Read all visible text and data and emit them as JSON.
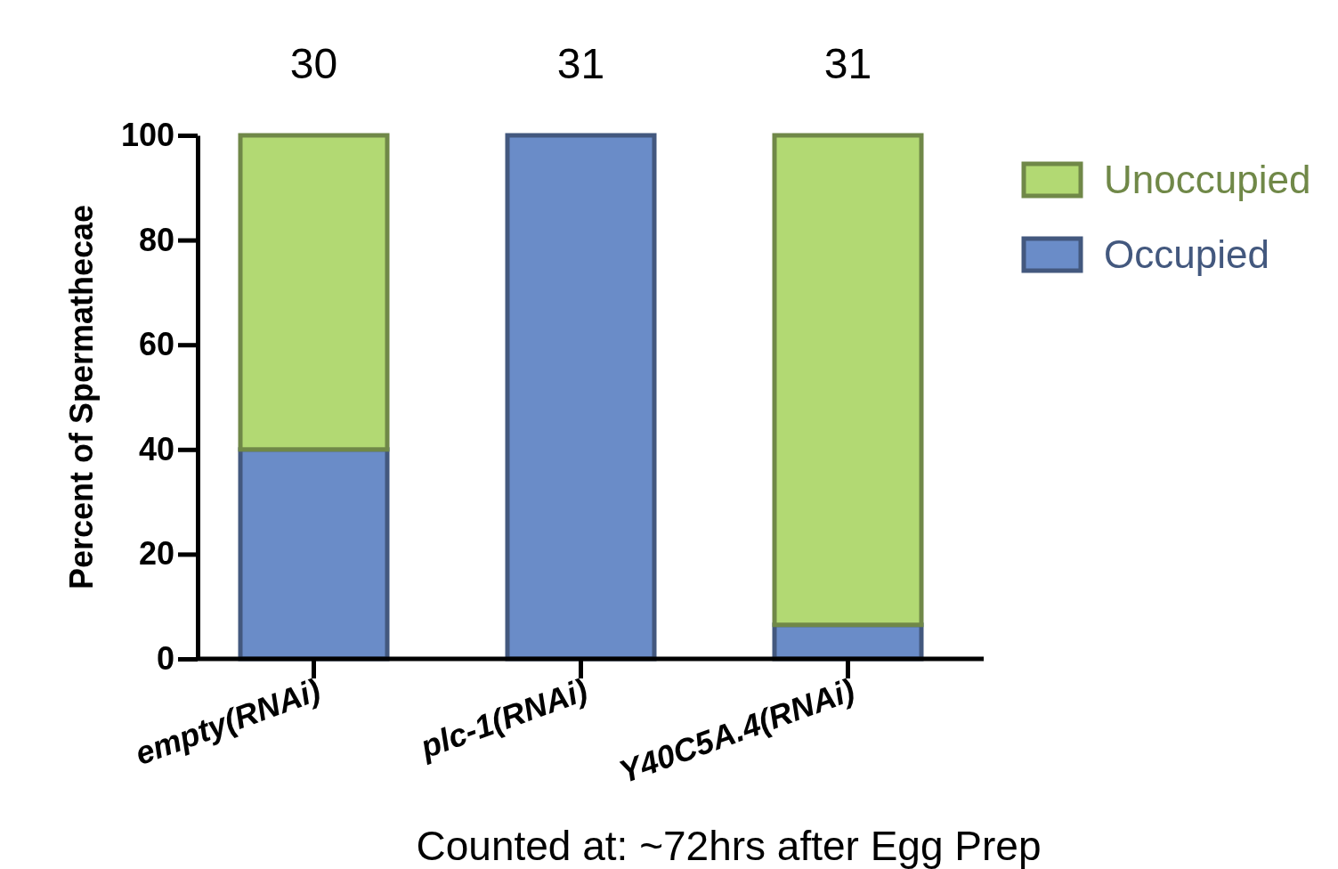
{
  "chart_data": {
    "type": "bar",
    "stacked": true,
    "ylabel": "Percent of Spermathecae",
    "xlabel": "Counted at: ~72hrs after Egg Prep",
    "categories": [
      "empty(RNAi)",
      "plc-1(RNAi)",
      "Y40C5A.4(RNAi)"
    ],
    "series": [
      {
        "name": "Occupied",
        "color": "#6a8cc8",
        "values": [
          40,
          100,
          6.5
        ]
      },
      {
        "name": "Unoccupied",
        "color": "#b2d973",
        "values": [
          60,
          0,
          93.5
        ]
      }
    ],
    "ylim": [
      0,
      100
    ],
    "yticks": [
      0,
      20,
      40,
      60,
      80,
      100
    ],
    "grid": false,
    "legend": "right",
    "annotations": [
      "30",
      "31",
      "31"
    ]
  }
}
